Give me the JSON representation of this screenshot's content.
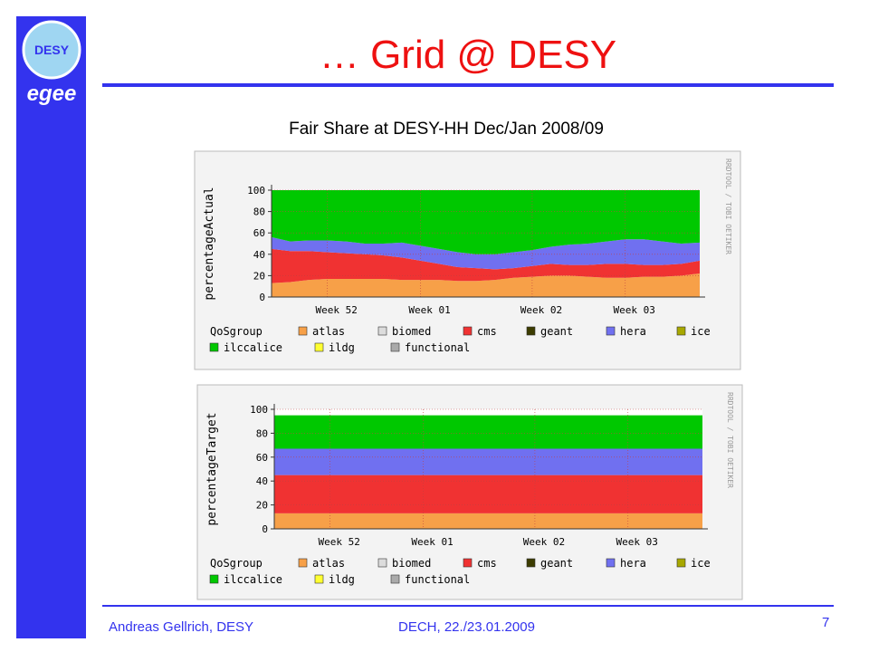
{
  "slide": {
    "title": "… Grid @ DESY",
    "subtitle": "Fair Share at DESY-HH Dec/Jan 2008/09",
    "logo_text": "DESY",
    "logo_egee": "egee",
    "footer_left": "Andreas Gellrich, DESY",
    "footer_center": "DECH, 22./23.01.2009",
    "page_number": "7"
  },
  "chart_data": [
    {
      "type": "stacked_area",
      "y_label": "percentageActual",
      "side_label": "RRDTOOL / TOBI OETIKER",
      "legend_title": "QoSgroup",
      "categories": [
        null,
        null,
        null,
        "Week 52",
        null,
        null,
        null,
        null,
        "Week 01",
        null,
        null,
        null,
        null,
        null,
        "Week 02",
        null,
        null,
        null,
        null,
        "Week 03",
        null,
        null,
        null,
        null
      ],
      "ylim": [
        0,
        100
      ],
      "yticks": [
        0,
        20,
        40,
        60,
        80,
        100
      ],
      "grid": true,
      "series": [
        {
          "name": "atlas",
          "color": "#f7a048",
          "values": [
            13,
            14,
            16,
            17,
            17,
            17,
            17,
            16,
            16,
            16,
            15,
            15,
            16,
            18,
            19,
            20,
            20,
            19,
            18,
            18,
            19,
            19,
            20,
            22
          ]
        },
        {
          "name": "biomed",
          "color": "#dcdcdc",
          "values": [
            0,
            0,
            0,
            0,
            0,
            0,
            0,
            0,
            0,
            0,
            0,
            0,
            0,
            0,
            0,
            0,
            0,
            0,
            0,
            0,
            0,
            0,
            0,
            0
          ]
        },
        {
          "name": "cms",
          "color": "#f03232",
          "values": [
            32,
            29,
            27,
            25,
            24,
            23,
            22,
            21,
            18,
            15,
            13,
            12,
            10,
            9,
            10,
            11,
            10,
            11,
            13,
            13,
            11,
            11,
            11,
            12
          ]
        },
        {
          "name": "geant",
          "color": "#3c3c00",
          "values": [
            0,
            0,
            0,
            0,
            0,
            0,
            0,
            0,
            0,
            0,
            0,
            0,
            0,
            0,
            0,
            0,
            0,
            0,
            0,
            0,
            0,
            0,
            0,
            0
          ]
        },
        {
          "name": "hera",
          "color": "#7070f0",
          "values": [
            11,
            9,
            10,
            11,
            11,
            10,
            11,
            14,
            14,
            14,
            14,
            13,
            14,
            15,
            15,
            16,
            19,
            20,
            21,
            23,
            24,
            22,
            19,
            17
          ]
        },
        {
          "name": "ice",
          "color": "#a8a800",
          "values": [
            0,
            0,
            0,
            0,
            0,
            0,
            0,
            0,
            0,
            0,
            0,
            0,
            0,
            0,
            0,
            0,
            0,
            0,
            0,
            0,
            0,
            0,
            0,
            0
          ]
        },
        {
          "name": "ilccalice",
          "color": "#00c800",
          "values": [
            44,
            48,
            47,
            47,
            48,
            50,
            50,
            49,
            52,
            55,
            58,
            60,
            60,
            58,
            56,
            53,
            51,
            50,
            48,
            46,
            46,
            48,
            50,
            49
          ]
        },
        {
          "name": "ildg",
          "color": "#ffff30",
          "values": [
            0,
            0,
            0,
            0,
            0,
            0,
            0,
            0,
            0,
            0,
            0,
            0,
            0,
            0,
            0,
            0,
            0,
            0,
            0,
            0,
            0,
            0,
            0,
            0
          ]
        },
        {
          "name": "functional",
          "color": "#aaaaaa",
          "values": [
            0,
            0,
            0,
            0,
            0,
            0,
            0,
            0,
            0,
            0,
            0,
            0,
            0,
            0,
            0,
            0,
            0,
            0,
            0,
            0,
            0,
            0,
            0,
            0
          ]
        }
      ]
    },
    {
      "type": "stacked_area",
      "y_label": "percentageTarget",
      "side_label": "RRDTOOL / TOBI OETIKER",
      "legend_title": "QoSgroup",
      "categories": [
        null,
        null,
        null,
        "Week 52",
        null,
        null,
        null,
        null,
        "Week 01",
        null,
        null,
        null,
        null,
        null,
        "Week 02",
        null,
        null,
        null,
        null,
        "Week 03",
        null,
        null,
        null,
        null
      ],
      "ylim": [
        0,
        100
      ],
      "yticks": [
        0,
        20,
        40,
        60,
        80,
        100
      ],
      "grid": true,
      "series": [
        {
          "name": "atlas",
          "color": "#f7a048",
          "values": [
            13,
            13,
            13,
            13,
            13,
            13,
            13,
            13,
            13,
            13,
            13,
            13,
            13,
            13,
            13,
            13,
            13,
            13,
            13,
            13,
            13,
            13,
            13,
            13
          ]
        },
        {
          "name": "biomed",
          "color": "#dcdcdc",
          "values": [
            0,
            0,
            0,
            0,
            0,
            0,
            0,
            0,
            0,
            0,
            0,
            0,
            0,
            0,
            0,
            0,
            0,
            0,
            0,
            0,
            0,
            0,
            0,
            0
          ]
        },
        {
          "name": "cms",
          "color": "#f03232",
          "values": [
            32,
            32,
            32,
            32,
            32,
            32,
            32,
            32,
            32,
            32,
            32,
            32,
            32,
            32,
            32,
            32,
            32,
            32,
            32,
            32,
            32,
            32,
            32,
            32
          ]
        },
        {
          "name": "geant",
          "color": "#3c3c00",
          "values": [
            0,
            0,
            0,
            0,
            0,
            0,
            0,
            0,
            0,
            0,
            0,
            0,
            0,
            0,
            0,
            0,
            0,
            0,
            0,
            0,
            0,
            0,
            0,
            0
          ]
        },
        {
          "name": "hera",
          "color": "#7070f0",
          "values": [
            22,
            22,
            22,
            22,
            22,
            22,
            22,
            22,
            22,
            22,
            22,
            22,
            22,
            22,
            22,
            22,
            22,
            22,
            22,
            22,
            22,
            22,
            22,
            22
          ]
        },
        {
          "name": "ice",
          "color": "#a8a800",
          "values": [
            0,
            0,
            0,
            0,
            0,
            0,
            0,
            0,
            0,
            0,
            0,
            0,
            0,
            0,
            0,
            0,
            0,
            0,
            0,
            0,
            0,
            0,
            0,
            0
          ]
        },
        {
          "name": "ilccalice",
          "color": "#00c800",
          "values": [
            28,
            28,
            28,
            28,
            28,
            28,
            28,
            28,
            28,
            28,
            28,
            28,
            28,
            28,
            28,
            28,
            28,
            28,
            28,
            28,
            28,
            28,
            28,
            28
          ]
        },
        {
          "name": "ildg",
          "color": "#ffff30",
          "values": [
            0,
            0,
            0,
            0,
            0,
            0,
            0,
            0,
            0,
            0,
            0,
            0,
            0,
            0,
            0,
            0,
            0,
            0,
            0,
            0,
            0,
            0,
            0,
            0
          ]
        },
        {
          "name": "functional",
          "color": "#aaaaaa",
          "values": [
            0,
            0,
            0,
            0,
            0,
            0,
            0,
            0,
            0,
            0,
            0,
            0,
            0,
            0,
            0,
            0,
            0,
            0,
            0,
            0,
            0,
            0,
            0,
            0
          ]
        }
      ]
    }
  ]
}
